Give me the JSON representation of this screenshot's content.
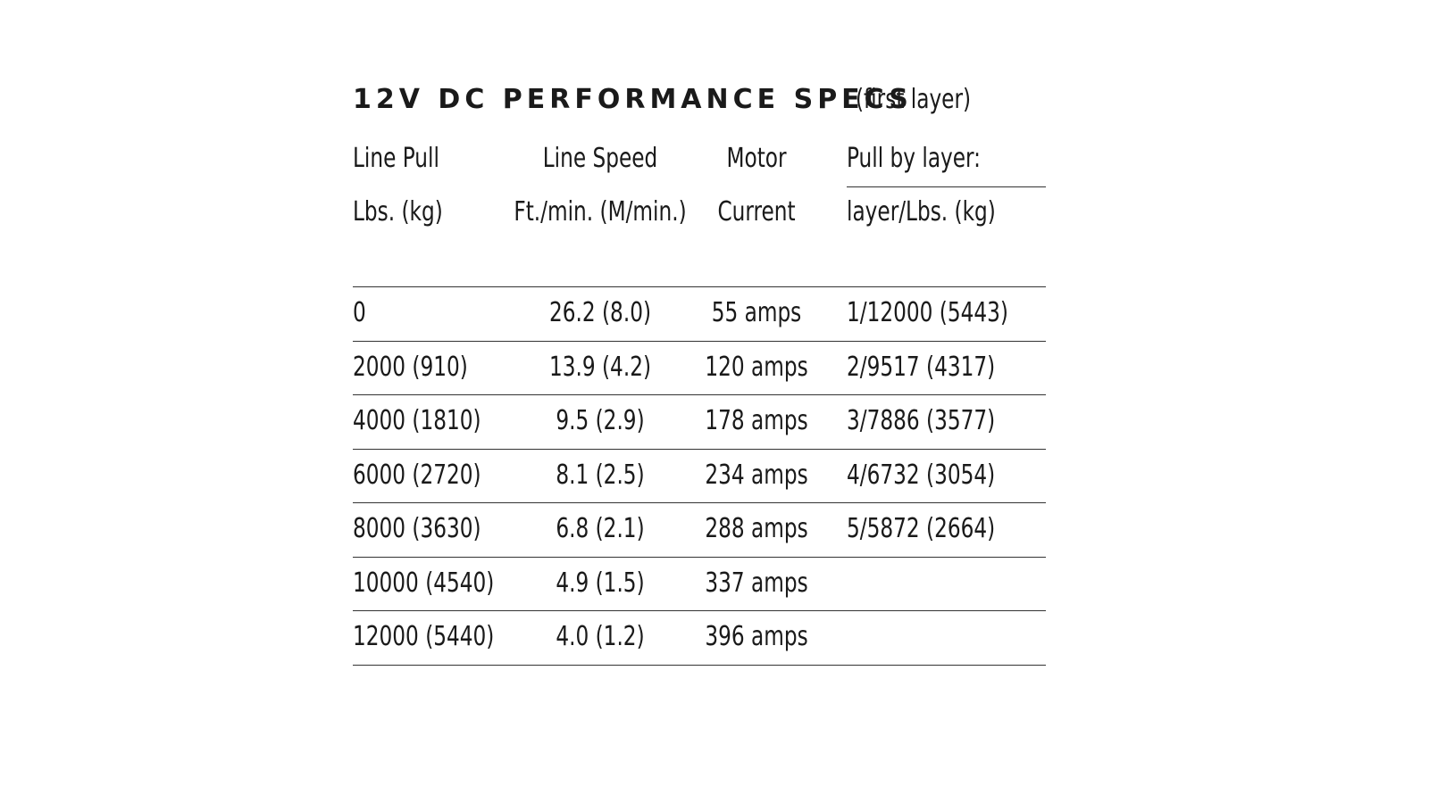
{
  "header": {
    "title": "12V DC PERFORMANCE SPECS",
    "subtitle": "(first layer)"
  },
  "table": {
    "header_top": [
      "Line Pull",
      "Line Speed",
      "Motor",
      "Pull by layer:"
    ],
    "header_bottom": [
      "Lbs. (kg)",
      "Ft./min. (M/min.)",
      "Current",
      "layer/Lbs. (kg)"
    ],
    "rows": [
      [
        "0",
        "26.2 (8.0)",
        "55 amps",
        "1/12000 (5443)"
      ],
      [
        "2000 (910)",
        "13.9 (4.2)",
        "120 amps",
        "2/9517 (4317)"
      ],
      [
        "4000 (1810)",
        "9.5 (2.9)",
        "178 amps",
        "3/7886 (3577)"
      ],
      [
        "6000 (2720)",
        "8.1 (2.5)",
        "234 amps",
        "4/6732 (3054)"
      ],
      [
        "8000 (3630)",
        "6.8 (2.1)",
        "288 amps",
        "5/5872 (2664)"
      ],
      [
        "10000 (4540)",
        "4.9 (1.5)",
        "337 amps"
      ],
      [
        "12000 (5440)",
        "4.0 (1.2)",
        "396 amps"
      ]
    ]
  }
}
